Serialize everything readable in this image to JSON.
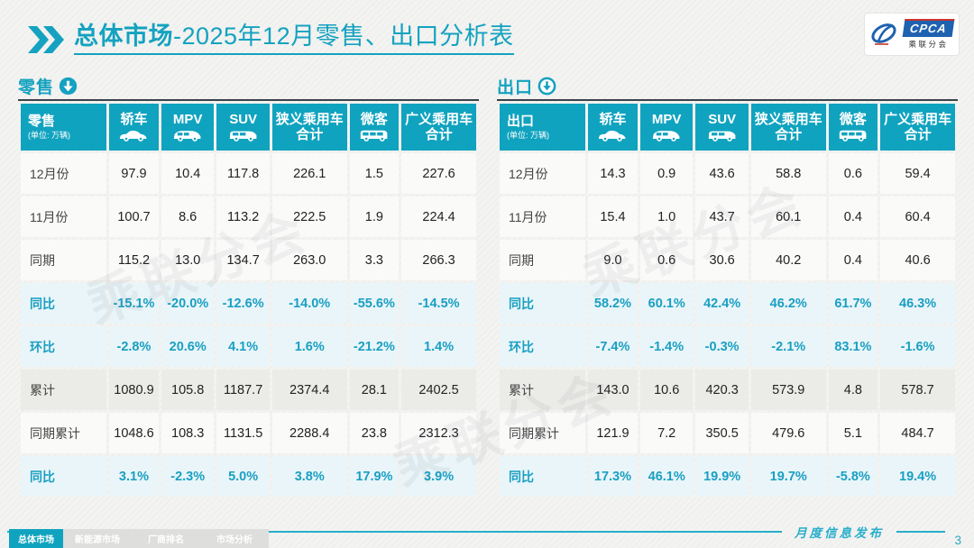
{
  "title": {
    "highlight": "总体市场",
    "rest": "-2025年12月零售、出口分析表"
  },
  "logo": {
    "name": "CPCA",
    "subtitle": "乘联分会"
  },
  "watermark": "乘联分会",
  "columns": [
    {
      "label": "轿车",
      "icon": "sedan-icon"
    },
    {
      "label": "MPV",
      "icon": "mpv-icon"
    },
    {
      "label": "SUV",
      "icon": "suv-icon"
    },
    {
      "label": "狭义乘用车",
      "label2": "合计"
    },
    {
      "label": "微客",
      "icon": "microvan-icon"
    },
    {
      "label": "广义乘用车",
      "label2": "合计"
    }
  ],
  "tables": [
    {
      "label": "零售",
      "unit": "(单位: 万辆)",
      "rows": [
        {
          "label": "12月份",
          "type": "month",
          "values": [
            "97.9",
            "10.4",
            "117.8",
            "226.1",
            "1.5",
            "227.6"
          ]
        },
        {
          "label": "11月份",
          "type": "month",
          "values": [
            "100.7",
            "8.6",
            "113.2",
            "222.5",
            "1.9",
            "224.4"
          ]
        },
        {
          "label": "同期",
          "type": "month",
          "values": [
            "115.2",
            "13.0",
            "134.7",
            "263.0",
            "3.3",
            "266.3"
          ]
        },
        {
          "label": "同比",
          "type": "pct",
          "values": [
            "-15.1%",
            "-20.0%",
            "-12.6%",
            "-14.0%",
            "-55.6%",
            "-14.5%"
          ]
        },
        {
          "label": "环比",
          "type": "pct",
          "values": [
            "-2.8%",
            "20.6%",
            "4.1%",
            "1.6%",
            "-21.2%",
            "1.4%"
          ]
        },
        {
          "label": "累计",
          "type": "cum",
          "values": [
            "1080.9",
            "105.8",
            "1187.7",
            "2374.4",
            "28.1",
            "2402.5"
          ]
        },
        {
          "label": "同期累计",
          "type": "month",
          "values": [
            "1048.6",
            "108.3",
            "1131.5",
            "2288.4",
            "23.8",
            "2312.3"
          ]
        },
        {
          "label": "同比",
          "type": "pct",
          "values": [
            "3.1%",
            "-2.3%",
            "5.0%",
            "3.8%",
            "17.9%",
            "3.9%"
          ]
        }
      ]
    },
    {
      "label": "出口",
      "unit": "(单位: 万辆)",
      "rows": [
        {
          "label": "12月份",
          "type": "month",
          "values": [
            "14.3",
            "0.9",
            "43.6",
            "58.8",
            "0.6",
            "59.4"
          ]
        },
        {
          "label": "11月份",
          "type": "month",
          "values": [
            "15.4",
            "1.0",
            "43.7",
            "60.1",
            "0.4",
            "60.4"
          ]
        },
        {
          "label": "同期",
          "type": "month",
          "values": [
            "9.0",
            "0.6",
            "30.6",
            "40.2",
            "0.4",
            "40.6"
          ]
        },
        {
          "label": "同比",
          "type": "pct",
          "values": [
            "58.2%",
            "60.1%",
            "42.4%",
            "46.2%",
            "61.7%",
            "46.3%"
          ]
        },
        {
          "label": "环比",
          "type": "pct",
          "values": [
            "-7.4%",
            "-1.4%",
            "-0.3%",
            "-2.1%",
            "83.1%",
            "-1.6%"
          ]
        },
        {
          "label": "累计",
          "type": "cum",
          "values": [
            "143.0",
            "10.6",
            "420.3",
            "573.9",
            "4.8",
            "578.7"
          ]
        },
        {
          "label": "同期累计",
          "type": "month",
          "values": [
            "121.9",
            "7.2",
            "350.5",
            "479.6",
            "5.1",
            "484.7"
          ]
        },
        {
          "label": "同比",
          "type": "pct",
          "values": [
            "17.3%",
            "46.1%",
            "19.9%",
            "19.7%",
            "-5.8%",
            "19.4%"
          ]
        }
      ]
    }
  ],
  "footer": {
    "publication": "月度信息发布",
    "page": "3",
    "tabs": [
      {
        "label": "总体市场",
        "active": true
      },
      {
        "label": "新能源市场",
        "active": false
      },
      {
        "label": "厂商排名",
        "active": false
      },
      {
        "label": "市场分析",
        "active": false
      }
    ]
  }
}
